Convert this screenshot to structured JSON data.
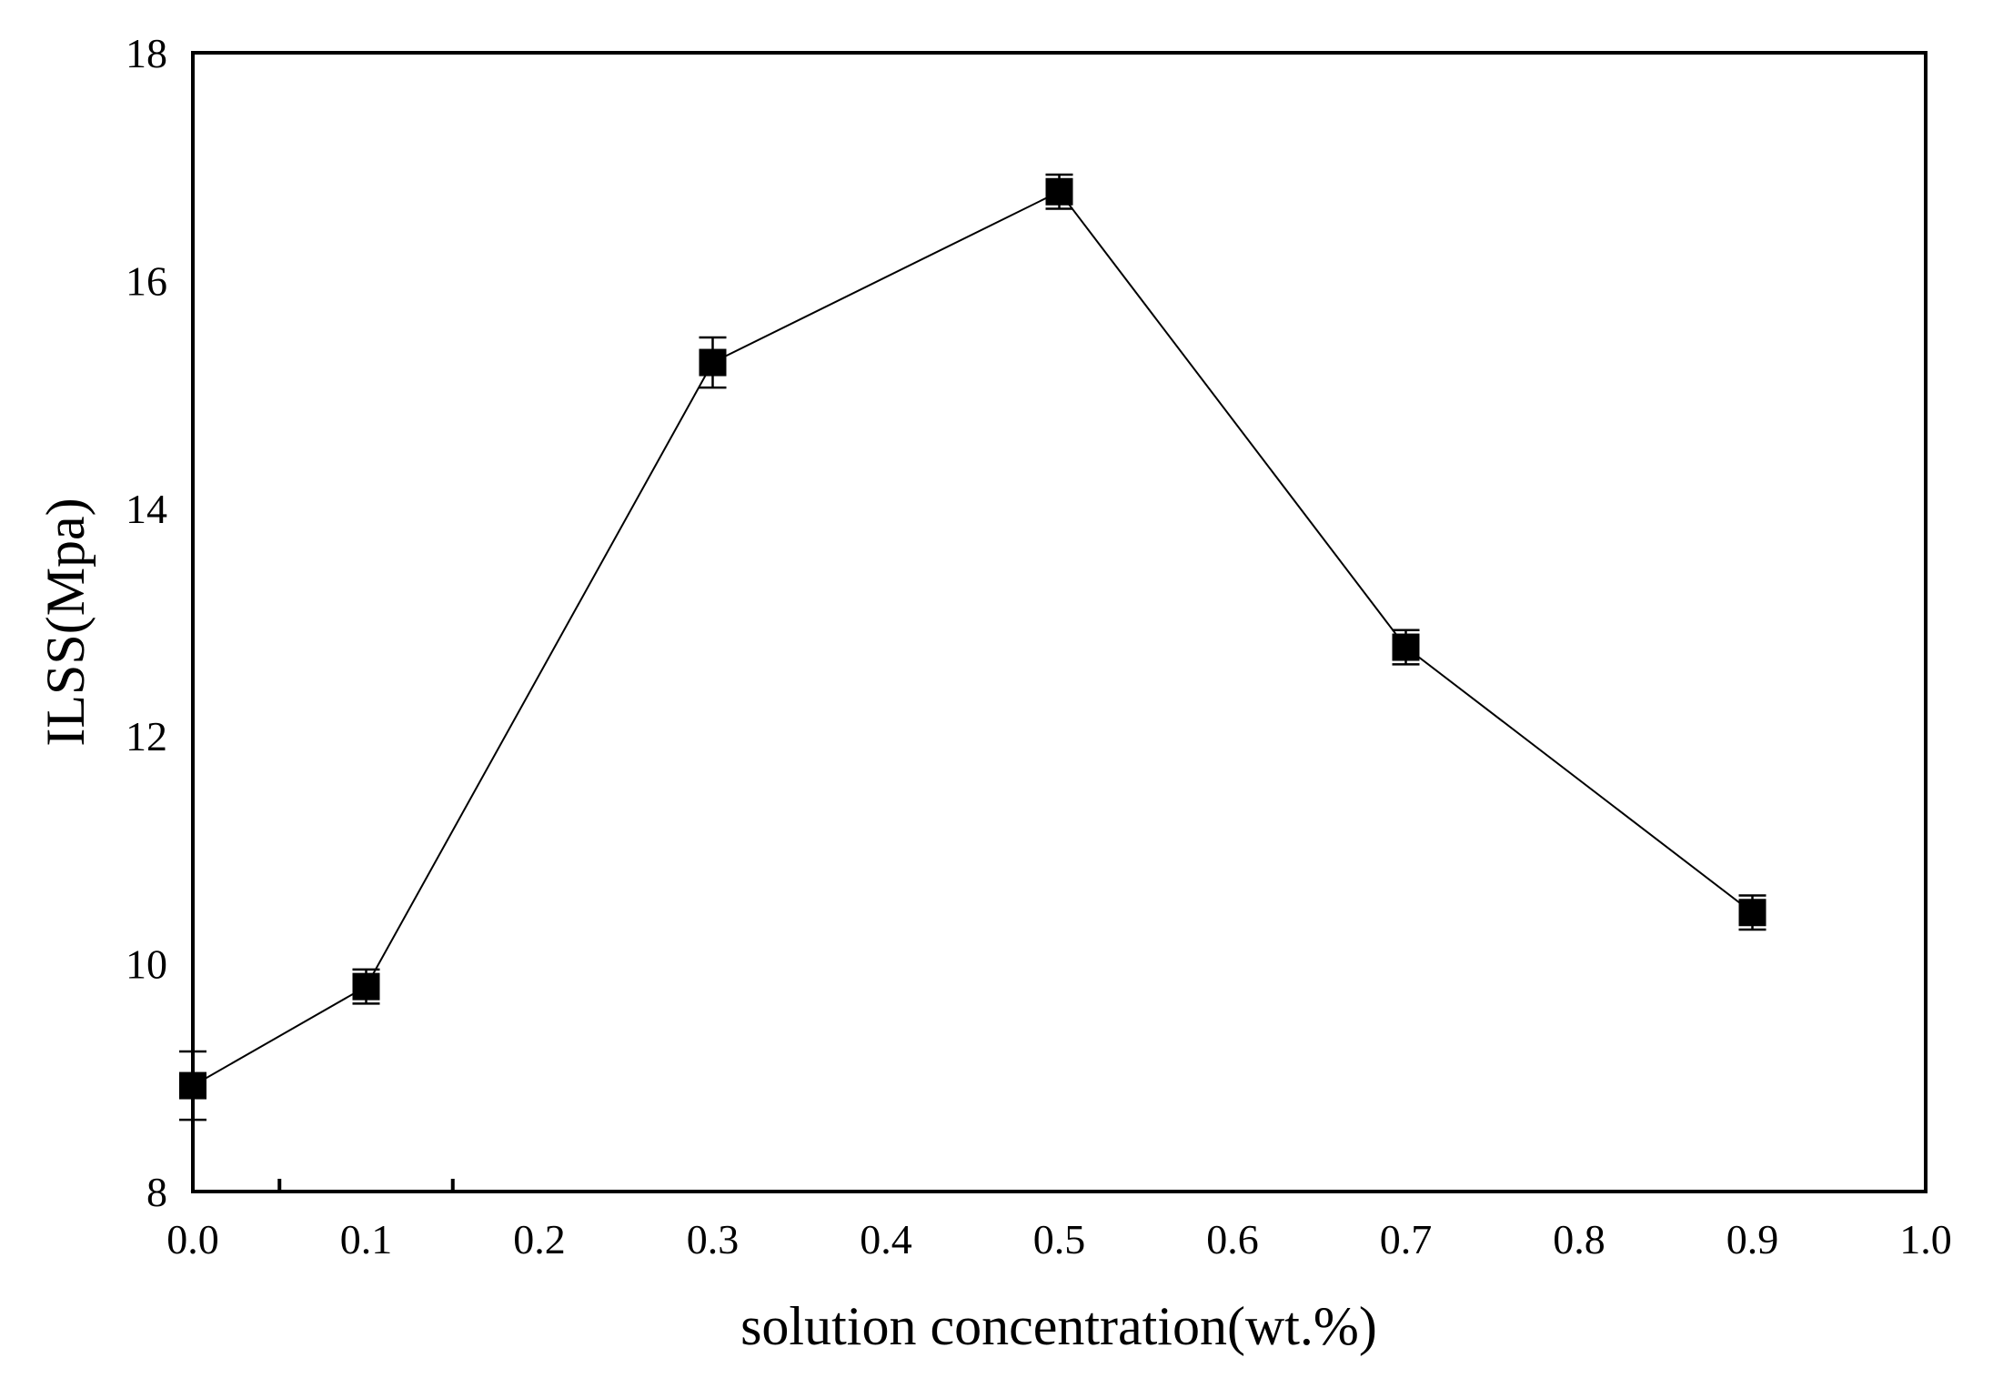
{
  "chart_data": {
    "type": "line",
    "title": "",
    "xlabel": "solution concentration(wt.%)",
    "ylabel": "ILSS(Mpa)",
    "xlim": [
      0.0,
      1.0
    ],
    "ylim": [
      8,
      18
    ],
    "x_ticks": [
      "0.0",
      "0.1",
      "0.2",
      "0.3",
      "0.4",
      "0.5",
      "0.6",
      "0.7",
      "0.8",
      "0.9",
      "1.0"
    ],
    "y_ticks": [
      "8",
      "10",
      "12",
      "14",
      "16",
      "18"
    ],
    "x_minor_ticks": [
      0.05,
      0.15
    ],
    "grid": false,
    "legend": "none",
    "marker": "filled-square",
    "color": "#000000",
    "series": [
      {
        "x": [
          0.0,
          0.1,
          0.3,
          0.5,
          0.7,
          0.9
        ],
        "y": [
          8.93,
          9.8,
          15.28,
          16.78,
          12.78,
          10.45
        ],
        "error": [
          0.3,
          0.15,
          0.22,
          0.15,
          0.15,
          0.15
        ]
      }
    ]
  }
}
